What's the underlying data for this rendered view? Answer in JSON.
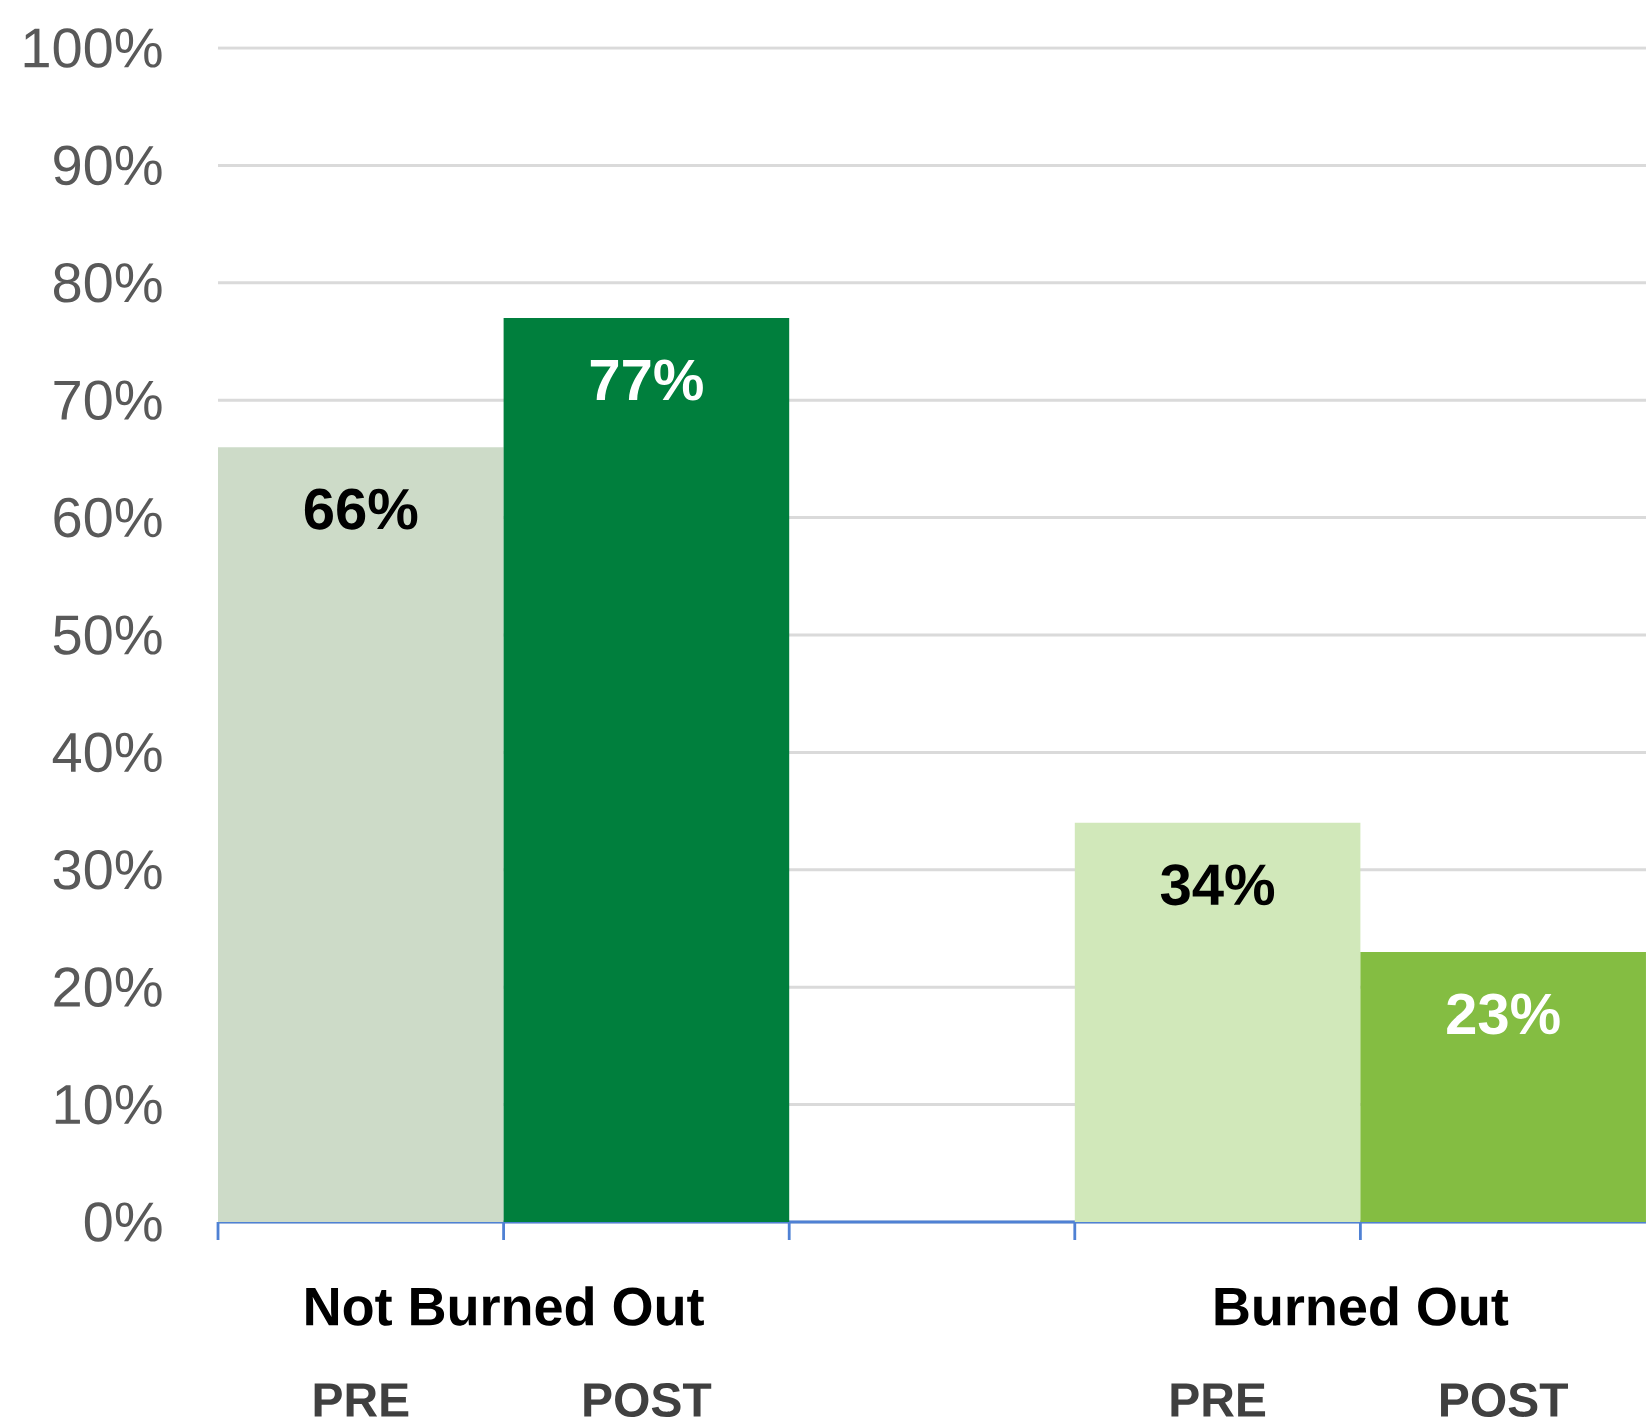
{
  "chart_data": {
    "type": "bar",
    "categories": [
      "PRE",
      "POST",
      null,
      "PRE",
      "POST"
    ],
    "values": [
      66,
      77,
      null,
      34,
      23
    ],
    "colors": [
      "#cddbc8",
      "#007f3d",
      null,
      "#d1e8ba",
      "#84bd42"
    ],
    "value_labels": [
      "66%",
      "77%",
      null,
      "34%",
      "23%"
    ],
    "annotations": [
      "Not Burned Out",
      "Burned Out"
    ],
    "ylim": [
      0,
      100
    ],
    "yticks": [
      {
        "value": 0,
        "label": "0%"
      },
      {
        "value": 10,
        "label": "10%"
      },
      {
        "value": 20,
        "label": "20%"
      },
      {
        "value": 30,
        "label": "30%"
      },
      {
        "value": 40,
        "label": "40%"
      },
      {
        "value": 50,
        "label": "50%"
      },
      {
        "value": 60,
        "label": "60%"
      },
      {
        "value": 70,
        "label": "70%"
      },
      {
        "value": 80,
        "label": "80%"
      },
      {
        "value": 90,
        "label": "90%"
      },
      {
        "value": 100,
        "label": "100%"
      }
    ],
    "grid": "y"
  }
}
